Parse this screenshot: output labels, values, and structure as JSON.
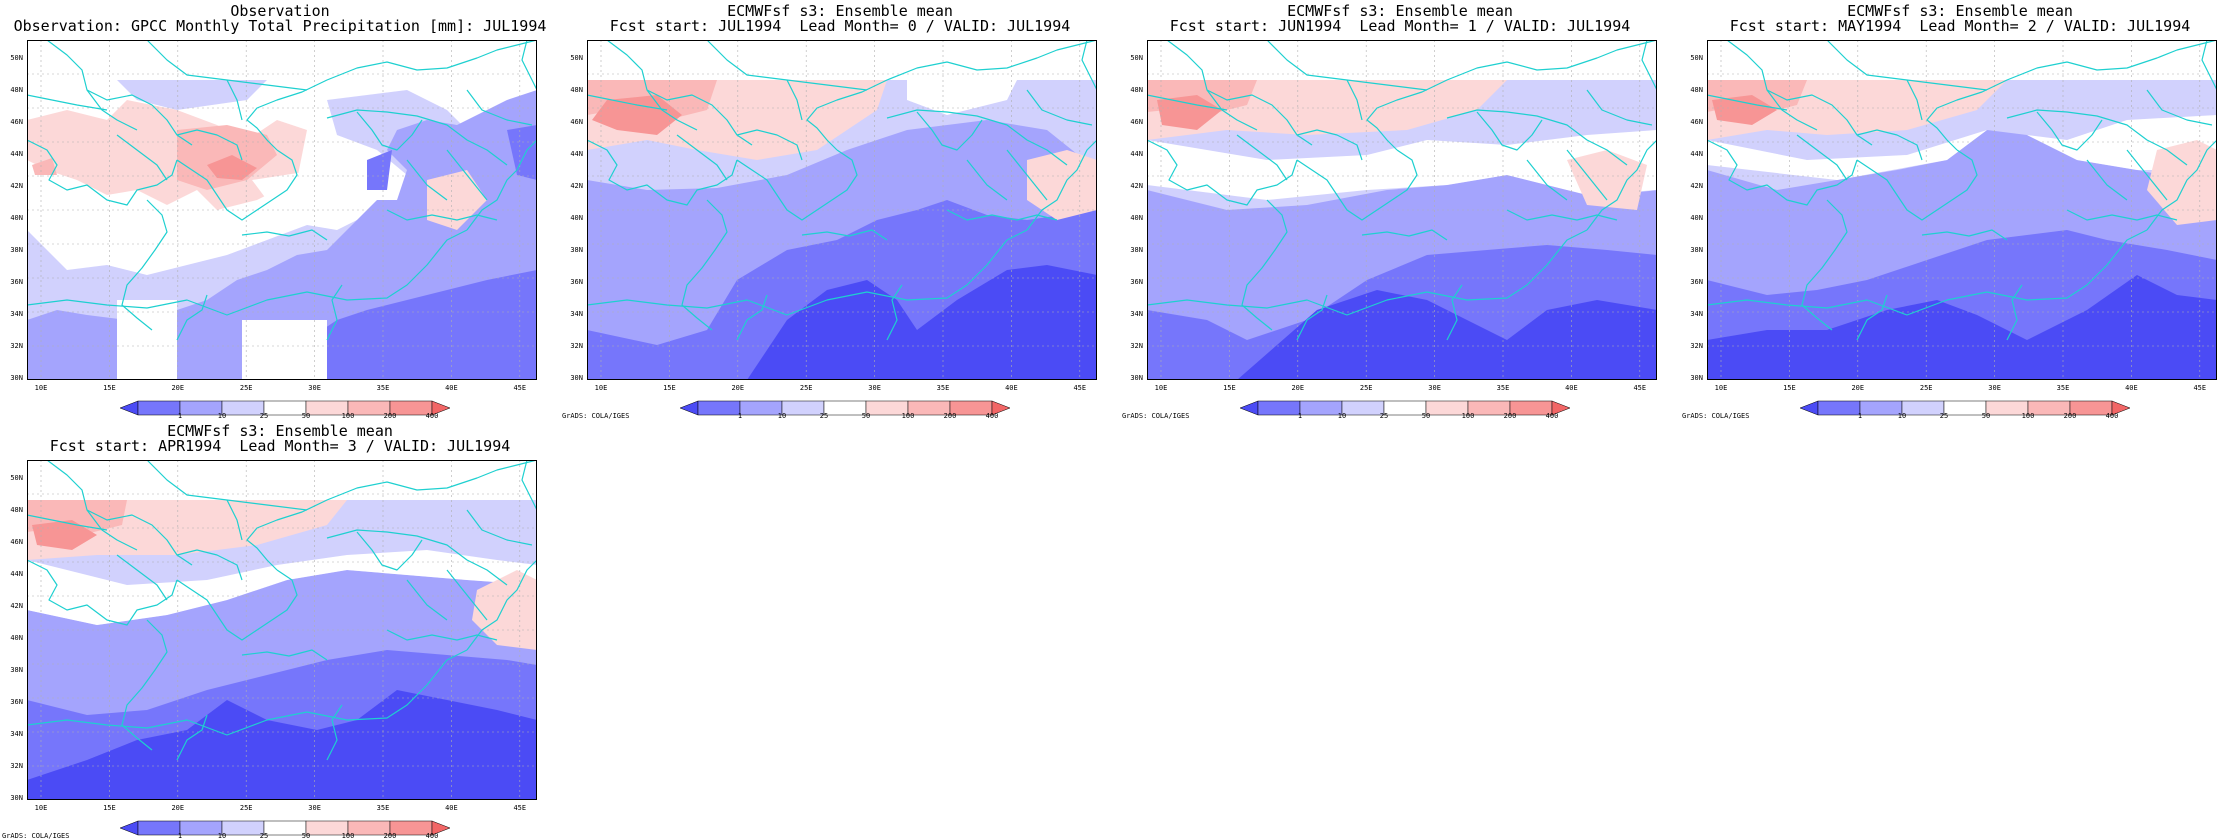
{
  "panels": [
    {
      "title_line1": "Observation",
      "title_line2": "Observation: GPCC Monthly Total Precipitation [mm]: JUL1994",
      "variant": "obs",
      "show_credit": false
    },
    {
      "title_line1": "ECMWFsf s3: Ensemble mean",
      "title_line2": "Fcst start: JUL1994  Lead Month= 0 / VALID: JUL1994",
      "variant": "f0",
      "show_credit": true
    },
    {
      "title_line1": "ECMWFsf s3: Ensemble mean",
      "title_line2": "Fcst start: JUN1994  Lead Month= 1 / VALID: JUL1994",
      "variant": "f1",
      "show_credit": true
    },
    {
      "title_line1": "ECMWFsf s3: Ensemble mean",
      "title_line2": "Fcst start: MAY1994  Lead Month= 2 / VALID: JUL1994",
      "variant": "f2",
      "show_credit": true
    },
    {
      "title_line1": "ECMWFsf s3: Ensemble mean",
      "title_line2": "Fcst start: APR1994  Lead Month= 3 / VALID: JUL1994",
      "variant": "f3",
      "show_credit": true
    }
  ],
  "lat_labels": [
    "50N",
    "48N",
    "46N",
    "44N",
    "42N",
    "40N",
    "38N",
    "36N",
    "34N",
    "32N",
    "30N"
  ],
  "lon_labels": [
    "10E",
    "15E",
    "20E",
    "25E",
    "30E",
    "35E",
    "40E",
    "45E"
  ],
  "colorbar": {
    "levels": [
      "1",
      "10",
      "25",
      "50",
      "100",
      "200",
      "400"
    ],
    "colors": [
      "#4b4bf5",
      "#7676fb",
      "#a4a4fd",
      "#d1d1fd",
      "#ffffff",
      "#fcd8d8",
      "#fab8b8",
      "#f79595",
      "#f26666"
    ]
  },
  "credit": "GrADS: COLA/IGES",
  "colors": {
    "coastline": "#1ed0d0",
    "grid": "#b0b0b0",
    "frame": "#000000"
  }
}
